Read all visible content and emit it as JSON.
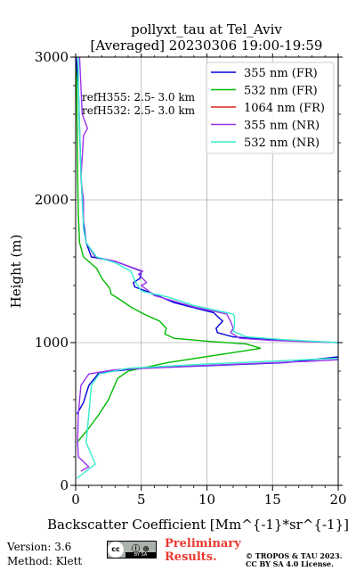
{
  "chart_data": {
    "type": "line",
    "title": [
      "pollyxt_tau at Tel_Aviv",
      "[Averaged] 20230306 19:00-19:59"
    ],
    "xlabel": "Backscatter Coefficient [Mm^{-1}*sr^{-1}]",
    "ylabel": "Height (m)",
    "xlim": [
      0,
      20
    ],
    "ylim": [
      0,
      3000
    ],
    "xticks": [
      0,
      5,
      10,
      15,
      20
    ],
    "yticks": [
      0,
      1000,
      2000,
      3000
    ],
    "grid": true,
    "legend_position": "top-right",
    "annotations": [
      "refH355:  2.5- 3.0 km",
      "refH532:  2.5- 3.0 km"
    ],
    "series": [
      {
        "name": "355 nm (FR)",
        "color": "#0000dd",
        "points": [
          [
            0.1,
            500
          ],
          [
            0.6,
            580
          ],
          [
            1.0,
            700
          ],
          [
            1.8,
            790
          ],
          [
            5,
            820
          ],
          [
            16,
            860
          ],
          [
            20,
            900
          ]
        ]
      },
      {
        "name": "532 nm (FR)",
        "color": "#00bb00",
        "points": [
          [
            0.1,
            300
          ],
          [
            1.0,
            400
          ],
          [
            1.8,
            500
          ],
          [
            2.5,
            600
          ],
          [
            3.2,
            750
          ],
          [
            4,
            800
          ],
          [
            7,
            860
          ],
          [
            12,
            930
          ],
          [
            14.1,
            960
          ],
          [
            13,
            990
          ],
          [
            10,
            1010
          ],
          [
            7.5,
            1030
          ],
          [
            6.8,
            1060
          ],
          [
            6.9,
            1100
          ],
          [
            6.4,
            1150
          ],
          [
            5.2,
            1200
          ],
          [
            4.2,
            1250
          ],
          [
            3.4,
            1300
          ],
          [
            2.7,
            1340
          ],
          [
            2.6,
            1380
          ],
          [
            2.0,
            1450
          ],
          [
            1.6,
            1520
          ],
          [
            0.6,
            1600
          ],
          [
            0.3,
            1700
          ],
          [
            0.2,
            1900
          ],
          [
            0.15,
            2200
          ],
          [
            0.1,
            2600
          ],
          [
            0.05,
            3000
          ]
        ]
      },
      {
        "name": "1064 nm (FR)",
        "color": "#dd2222",
        "points": []
      },
      {
        "name": "355 nm (NR)",
        "color": "#9933ee",
        "points": [
          [
            0.4,
            100
          ],
          [
            1.0,
            130
          ],
          [
            0.2,
            200
          ],
          [
            0.15,
            300
          ],
          [
            0.2,
            500
          ],
          [
            0.4,
            700
          ],
          [
            1.0,
            780
          ],
          [
            3,
            810
          ],
          [
            10,
            840
          ],
          [
            18,
            870
          ],
          [
            20,
            880
          ]
        ]
      },
      {
        "name": "532 nm (NR)",
        "color": "#33eecc",
        "points": [
          [
            0.1,
            50
          ],
          [
            1.5,
            150
          ],
          [
            0.8,
            300
          ],
          [
            1.0,
            500
          ],
          [
            1.2,
            700
          ],
          [
            1.8,
            780
          ],
          [
            4,
            820
          ],
          [
            10,
            850
          ],
          [
            20,
            890
          ]
        ]
      }
    ],
    "upper_series": [
      {
        "name": "355 nm (FR)",
        "color": "#0000dd",
        "points": [
          [
            20,
            1000
          ],
          [
            15,
            1020
          ],
          [
            12,
            1040
          ],
          [
            10.8,
            1070
          ],
          [
            10.7,
            1100
          ],
          [
            11.2,
            1150
          ],
          [
            10.5,
            1210
          ],
          [
            7.5,
            1280
          ],
          [
            5.7,
            1350
          ],
          [
            4.5,
            1390
          ],
          [
            4.4,
            1420
          ],
          [
            4.9,
            1450
          ],
          [
            5.0,
            1500
          ],
          [
            3,
            1570
          ],
          [
            1.2,
            1600
          ],
          [
            0.8,
            1700
          ],
          [
            0.6,
            1850
          ],
          [
            0.5,
            2000
          ],
          [
            0.4,
            2200
          ],
          [
            0.3,
            2500
          ],
          [
            0.2,
            2800
          ],
          [
            0.05,
            3000
          ]
        ]
      },
      {
        "name": "355 nm (NR)",
        "color": "#9933ee",
        "points": [
          [
            20,
            1000
          ],
          [
            15,
            1015
          ],
          [
            12.5,
            1030
          ],
          [
            11.8,
            1070
          ],
          [
            12,
            1100
          ],
          [
            11.8,
            1150
          ],
          [
            11.5,
            1200
          ],
          [
            9,
            1250
          ],
          [
            6,
            1330
          ],
          [
            5,
            1400
          ],
          [
            5.4,
            1420
          ],
          [
            4.8,
            1480
          ],
          [
            5.1,
            1500
          ],
          [
            3,
            1570
          ],
          [
            1.5,
            1600
          ],
          [
            0.8,
            1700
          ],
          [
            0.6,
            1800
          ],
          [
            0.6,
            2000
          ],
          [
            0.4,
            2150
          ],
          [
            0.5,
            2300
          ],
          [
            0.6,
            2450
          ],
          [
            0.9,
            2500
          ],
          [
            0.5,
            2600
          ],
          [
            0.4,
            2800
          ],
          [
            0.3,
            3000
          ]
        ]
      },
      {
        "name": "532 nm (NR)",
        "color": "#33eecc",
        "points": [
          [
            20,
            1000
          ],
          [
            16,
            1020
          ],
          [
            13,
            1040
          ],
          [
            12,
            1080
          ],
          [
            12.1,
            1120
          ],
          [
            12.1,
            1180
          ],
          [
            12,
            1200
          ],
          [
            9,
            1260
          ],
          [
            7,
            1320
          ],
          [
            5,
            1360
          ],
          [
            4.6,
            1420
          ],
          [
            4.2,
            1500
          ],
          [
            3,
            1560
          ],
          [
            1.6,
            1600
          ],
          [
            0.8,
            1700
          ],
          [
            0.6,
            1800
          ],
          [
            0.5,
            2000
          ],
          [
            0.4,
            2200
          ],
          [
            0.3,
            2500
          ],
          [
            0.2,
            2800
          ],
          [
            0.2,
            3000
          ]
        ]
      }
    ]
  },
  "footer": {
    "version": "Version: 3.6",
    "method": "Method: Klett",
    "preliminary_line1": "Preliminary",
    "preliminary_line2": "Results.",
    "copyright_line1": "© TROPOS & TAU 2023.",
    "copyright_line2": "CC BY SA 4.0 License.",
    "cc_badge_left": "cc",
    "cc_badge_right": "ⓘ ⊛",
    "cc_badge_bottom": "BY SA"
  }
}
